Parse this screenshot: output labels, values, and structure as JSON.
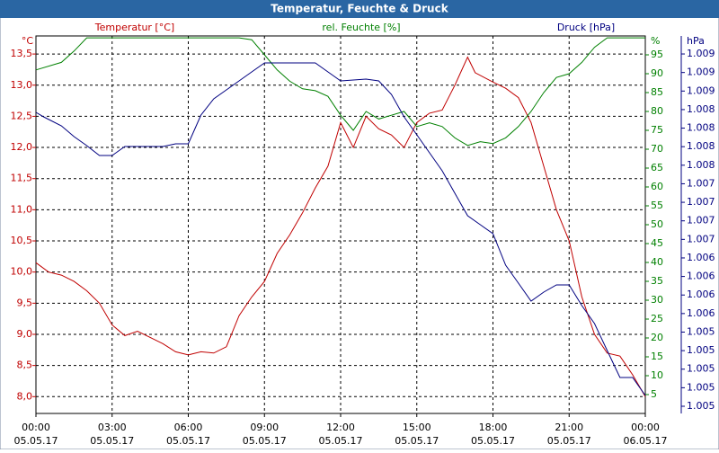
{
  "chart_data": {
    "type": "line",
    "title": "Temperatur, Feuchte & Druck",
    "y_unit": "°C",
    "y2_unit": "%",
    "y3_unit": "hPa",
    "xlim": [
      0,
      24
    ],
    "xticks": [
      {
        "value": 0,
        "label": "00:00"
      },
      {
        "value": 3,
        "label": "03:00"
      },
      {
        "value": 6,
        "label": "06:00"
      },
      {
        "value": 9,
        "label": "09:00"
      },
      {
        "value": 12,
        "label": "12:00"
      },
      {
        "value": 15,
        "label": "15:00"
      },
      {
        "value": 18,
        "label": "18:00"
      },
      {
        "value": 21,
        "label": "21:00"
      },
      {
        "value": 24,
        "label": "00:00"
      }
    ],
    "xtick_dates": [
      "05.05.17",
      "05.05.17",
      "05.05.17",
      "05.05.17",
      "05.05.17",
      "05.05.17",
      "05.05.17",
      "05.05.17",
      "06.05.17"
    ],
    "ylim": [
      7.73,
      13.79
    ],
    "yticks": [
      {
        "value": 8.0,
        "label": "8,0"
      },
      {
        "value": 8.5,
        "label": "8,5"
      },
      {
        "value": 9.0,
        "label": "9,0"
      },
      {
        "value": 9.5,
        "label": "9,5"
      },
      {
        "value": 10.0,
        "label": "10,0"
      },
      {
        "value": 10.5,
        "label": "10,5"
      },
      {
        "value": 11.0,
        "label": "11,0"
      },
      {
        "value": 11.5,
        "label": "11,5"
      },
      {
        "value": 12.0,
        "label": "12,0"
      },
      {
        "value": 12.5,
        "label": "12,5"
      },
      {
        "value": 13.0,
        "label": "13,0"
      },
      {
        "value": 13.5,
        "label": "13,5"
      }
    ],
    "y2lim": [
      0,
      100
    ],
    "y2ticks": [
      5,
      10,
      15,
      20,
      25,
      30,
      35,
      40,
      45,
      50,
      55,
      60,
      65,
      70,
      75,
      80,
      85,
      90,
      95
    ],
    "y3lim": [
      1.004405,
      1.009393
    ],
    "y3ticks": [
      {
        "value": 1.0045,
        "label": "1.005"
      },
      {
        "value": 1.004745,
        "label": "1.005"
      },
      {
        "value": 1.00499,
        "label": "1.005"
      },
      {
        "value": 1.005235,
        "label": "1.005"
      },
      {
        "value": 1.00548,
        "label": "1.005"
      },
      {
        "value": 1.005725,
        "label": "1.006"
      },
      {
        "value": 1.00597,
        "label": "1.006"
      },
      {
        "value": 1.006215,
        "label": "1.006"
      },
      {
        "value": 1.00646,
        "label": "1.006"
      },
      {
        "value": 1.006705,
        "label": "1.007"
      },
      {
        "value": 1.00695,
        "label": "1.007"
      },
      {
        "value": 1.007195,
        "label": "1.007"
      },
      {
        "value": 1.00744,
        "label": "1.007"
      },
      {
        "value": 1.007685,
        "label": "1.008"
      },
      {
        "value": 1.00793,
        "label": "1.008"
      },
      {
        "value": 1.008175,
        "label": "1.008"
      },
      {
        "value": 1.00842,
        "label": "1.008"
      },
      {
        "value": 1.008665,
        "label": "1.009"
      },
      {
        "value": 1.00891,
        "label": "1.009"
      },
      {
        "value": 1.009155,
        "label": "1.009"
      }
    ],
    "grid": true,
    "series": [
      {
        "name": "Temperatur [°C]",
        "color": "#c00000",
        "axis": "y",
        "x": [
          0,
          0.5,
          1,
          1.5,
          2,
          2.5,
          3,
          3.5,
          4,
          4.5,
          5,
          5.5,
          6,
          6.5,
          7,
          7.5,
          8,
          8.5,
          9,
          9.5,
          10,
          10.5,
          11,
          11.5,
          12,
          12.5,
          13,
          13.5,
          14,
          14.5,
          15,
          15.5,
          16,
          16.5,
          17,
          17.3,
          18,
          18.5,
          19,
          19.5,
          20,
          20.5,
          21,
          21.5,
          22,
          22.5,
          23,
          23.5,
          24
        ],
        "values": [
          10.15,
          10.0,
          9.95,
          9.85,
          9.7,
          9.5,
          9.15,
          8.98,
          9.05,
          8.95,
          8.85,
          8.72,
          8.67,
          8.72,
          8.7,
          8.8,
          9.3,
          9.6,
          9.85,
          10.3,
          10.6,
          10.95,
          11.35,
          11.7,
          12.4,
          12.0,
          12.5,
          12.3,
          12.2,
          12.0,
          12.4,
          12.55,
          12.6,
          13.0,
          13.45,
          13.2,
          13.05,
          12.95,
          12.8,
          12.4,
          11.7,
          11.0,
          10.5,
          9.6,
          9.0,
          8.7,
          8.65,
          8.35,
          8.0
        ]
      },
      {
        "name": "rel. Feuchte [%]",
        "color": "#008000",
        "axis": "y2",
        "x": [
          0,
          1,
          1.5,
          2,
          3,
          8,
          8.5,
          9,
          9.5,
          10,
          10.5,
          11,
          11.5,
          12,
          12.5,
          13,
          13.5,
          14,
          14.5,
          15,
          15.5,
          16,
          16.5,
          17,
          17.5,
          18,
          18.5,
          19,
          19.5,
          20,
          20.5,
          21,
          21.5,
          22,
          22.5,
          24
        ],
        "values": [
          91,
          93,
          96,
          99.5,
          99.5,
          99.5,
          99,
          95,
          91,
          88,
          86,
          85.5,
          84,
          79,
          75,
          80,
          78,
          79,
          80,
          76,
          77,
          76,
          73,
          71,
          72,
          71.5,
          73,
          76,
          80,
          85,
          89,
          90,
          93,
          97,
          99.5,
          99.5
        ]
      },
      {
        "name": "Druck [hPa]",
        "color": "#000080",
        "axis": "y3",
        "x": [
          0,
          0.3,
          1,
          1.5,
          2,
          2.5,
          3,
          3.5,
          5,
          5.5,
          6,
          6.5,
          7,
          7.5,
          8,
          8.5,
          9,
          9.5,
          10,
          11,
          11.5,
          12,
          13,
          13.5,
          14,
          14.5,
          15,
          15.5,
          16,
          16.5,
          17,
          17.5,
          18,
          18.5,
          19,
          19.5,
          20,
          20.5,
          21,
          21.5,
          22,
          22.5,
          23,
          23.5,
          24
        ],
        "values": [
          1.008384,
          1.008324,
          1.008205,
          1.008063,
          1.007944,
          1.007813,
          1.007813,
          1.007932,
          1.007932,
          1.007968,
          1.007968,
          1.008348,
          1.008562,
          1.00868,
          1.008799,
          1.008918,
          1.009037,
          1.009037,
          1.009037,
          1.009037,
          1.008918,
          1.008799,
          1.008823,
          1.008799,
          1.008621,
          1.008324,
          1.008087,
          1.007849,
          1.007612,
          1.007315,
          1.007018,
          1.006899,
          1.00678,
          1.006365,
          1.006127,
          1.00589,
          1.006008,
          1.006103,
          1.006103,
          1.00583,
          1.005593,
          1.005236,
          1.00488,
          1.00488,
          1.004643
        ]
      }
    ]
  }
}
